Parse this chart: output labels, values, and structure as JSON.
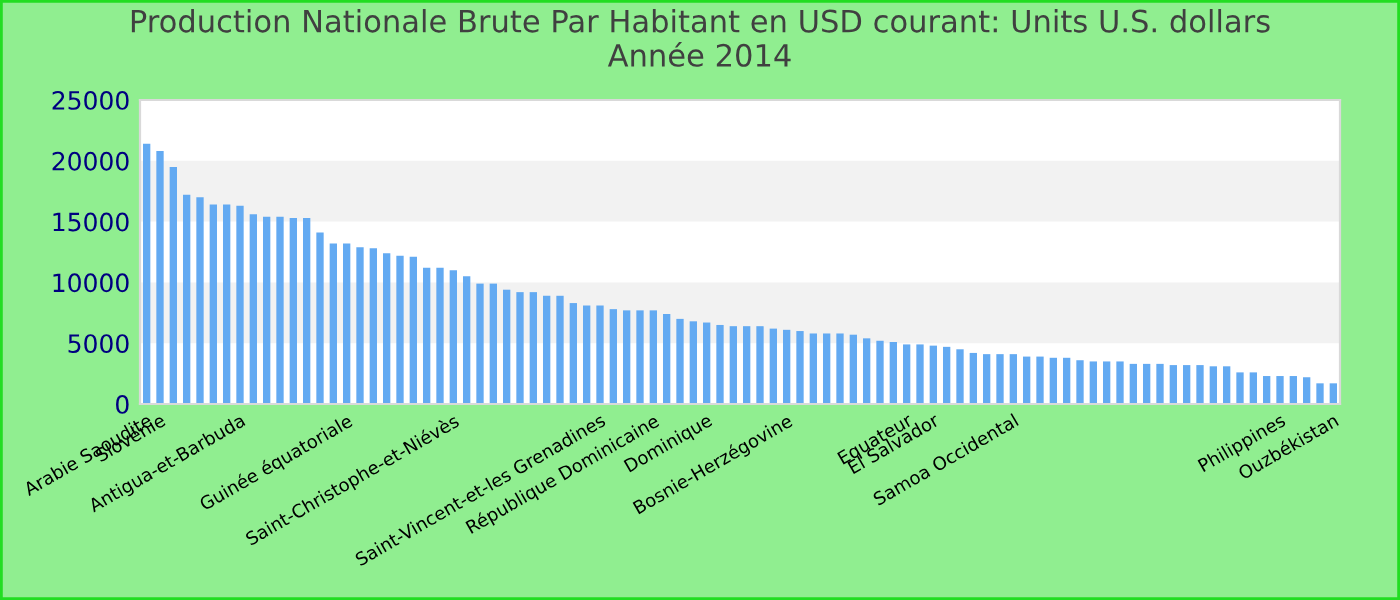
{
  "chart_data": {
    "type": "bar",
    "title": "Production Nationale Brute Par Habitant en USD courant: Units U.S. dollars\nAnnée 2014",
    "categories": [
      "Arabie Saoudite",
      "Slovénie",
      null,
      null,
      null,
      null,
      null,
      "Antigua-et-Barbuda",
      null,
      null,
      null,
      null,
      null,
      null,
      null,
      "Guinée équatoriale",
      null,
      null,
      null,
      null,
      null,
      null,
      null,
      "Saint-Christophe-et-Niévès",
      null,
      null,
      null,
      null,
      null,
      null,
      null,
      null,
      null,
      null,
      "Saint-Vincent-et-les Grenadines",
      null,
      null,
      null,
      "République Dominicaine",
      null,
      null,
      null,
      "Dominique",
      null,
      null,
      null,
      null,
      null,
      "Bosnie-Herzégovine",
      null,
      null,
      null,
      null,
      null,
      null,
      null,
      null,
      "Equateur",
      null,
      "El Salvador",
      null,
      null,
      null,
      null,
      null,
      "Samoa Occidental",
      null,
      null,
      null,
      null,
      null,
      null,
      null,
      null,
      null,
      null,
      null,
      null,
      null,
      null,
      null,
      null,
      null,
      null,
      null,
      "Philippines",
      null,
      null,
      null,
      "Ouzbékistan"
    ],
    "values": [
      21400,
      20800,
      19500,
      17200,
      17000,
      16400,
      16400,
      16300,
      15600,
      15400,
      15400,
      15300,
      15300,
      14100,
      13200,
      13200,
      12900,
      12800,
      12400,
      12200,
      12100,
      11200,
      11200,
      11000,
      10500,
      9900,
      9900,
      9400,
      9200,
      9200,
      8900,
      8900,
      8300,
      8100,
      8100,
      7800,
      7700,
      7700,
      7700,
      7400,
      7000,
      6800,
      6700,
      6500,
      6400,
      6400,
      6400,
      6200,
      6100,
      6000,
      5800,
      5800,
      5800,
      5700,
      5400,
      5200,
      5100,
      4900,
      4900,
      4800,
      4700,
      4500,
      4200,
      4100,
      4100,
      4100,
      3900,
      3900,
      3800,
      3800,
      3600,
      3500,
      3500,
      3500,
      3300,
      3300,
      3300,
      3200,
      3200,
      3200,
      3100,
      3100,
      2600,
      2600,
      2300,
      2300,
      2300,
      2200,
      1700,
      1700
    ],
    "color": "#63aaf2",
    "ylim": [
      0,
      25000
    ],
    "yticks": [
      0,
      5000,
      10000,
      15000,
      20000,
      25000
    ],
    "bands": [
      {
        "axis": "y",
        "from": 5000,
        "to": 10000,
        "color": "#f2f2f2"
      },
      {
        "axis": "y",
        "from": 15000,
        "to": 20000,
        "color": "#f2f2f2"
      }
    ],
    "grid": false,
    "legend": false
  }
}
